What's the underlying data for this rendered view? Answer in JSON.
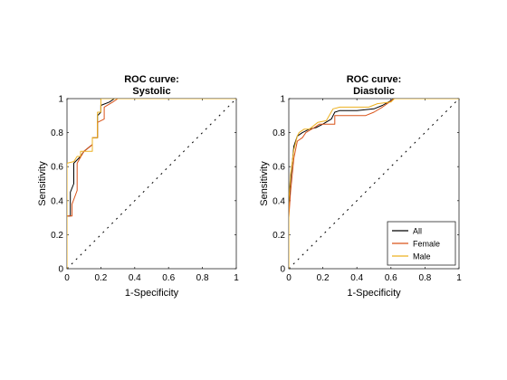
{
  "chart_data": [
    {
      "type": "line",
      "title": [
        "ROC curve:",
        "Systolic"
      ],
      "xlabel": "1-Specificity",
      "ylabel": "Sensitivity",
      "xlim": [
        0,
        1
      ],
      "ylim": [
        0,
        1
      ],
      "xticks": [
        "0",
        "0.2",
        "0.4",
        "0.6",
        "0.8",
        "1"
      ],
      "yticks": [
        "0",
        "0.2",
        "0.4",
        "0.6",
        "0.8",
        "1"
      ],
      "grid": false,
      "legend": null,
      "reference_line": {
        "style": "dotted",
        "from": [
          0,
          0
        ],
        "to": [
          1,
          1
        ]
      },
      "series": [
        {
          "color": "#000000",
          "x": [
            0,
            0,
            0.02,
            0.02,
            0.04,
            0.04,
            0.08,
            0.1,
            0.15,
            0.15,
            0.18,
            0.18,
            0.2,
            0.2,
            0.25,
            0.28,
            1
          ],
          "y": [
            0,
            0.31,
            0.31,
            0.45,
            0.5,
            0.62,
            0.66,
            0.69,
            0.73,
            0.77,
            0.77,
            0.9,
            0.92,
            0.96,
            0.98,
            1,
            1
          ]
        },
        {
          "color": "#d95319",
          "x": [
            0,
            0,
            0.03,
            0.03,
            0.06,
            0.06,
            0.1,
            0.15,
            0.15,
            0.18,
            0.18,
            0.22,
            0.22,
            0.27,
            0.3,
            1
          ],
          "y": [
            0,
            0.31,
            0.31,
            0.38,
            0.46,
            0.62,
            0.69,
            0.73,
            0.77,
            0.77,
            0.86,
            0.88,
            0.95,
            0.98,
            1,
            1
          ]
        },
        {
          "color": "#edb120",
          "x": [
            0,
            0,
            0.04,
            0.06,
            0.08,
            0.08,
            0.15,
            0.15,
            0.18,
            0.18,
            0.2,
            0.2,
            1
          ],
          "y": [
            0,
            0.62,
            0.63,
            0.66,
            0.66,
            0.69,
            0.69,
            0.77,
            0.77,
            0.92,
            0.92,
            1,
            1
          ]
        }
      ]
    },
    {
      "type": "line",
      "title": [
        "ROC curve:",
        "Diastolic"
      ],
      "xlabel": "1-Specificity",
      "ylabel": "Sensitivity",
      "xlim": [
        0,
        1
      ],
      "ylim": [
        0,
        1
      ],
      "xticks": [
        "0",
        "0.2",
        "0.4",
        "0.6",
        "0.8",
        "1"
      ],
      "yticks": [
        "0",
        "0.2",
        "0.4",
        "0.6",
        "0.8",
        "1"
      ],
      "grid": false,
      "legend": "bottom-right",
      "reference_line": {
        "style": "dotted",
        "from": [
          0,
          0
        ],
        "to": [
          1,
          1
        ]
      },
      "series": [
        {
          "name": "All",
          "color": "#000000",
          "x": [
            0,
            0,
            0.01,
            0.02,
            0.03,
            0.05,
            0.08,
            0.12,
            0.16,
            0.2,
            0.25,
            0.27,
            0.3,
            0.4,
            0.5,
            0.55,
            0.62,
            1
          ],
          "y": [
            0,
            0.35,
            0.52,
            0.62,
            0.72,
            0.78,
            0.8,
            0.82,
            0.83,
            0.85,
            0.88,
            0.92,
            0.93,
            0.93,
            0.94,
            0.96,
            1,
            1
          ]
        },
        {
          "name": "Female",
          "color": "#d95319",
          "x": [
            0,
            0,
            0.01,
            0.03,
            0.05,
            0.08,
            0.1,
            0.15,
            0.18,
            0.22,
            0.27,
            0.27,
            0.45,
            0.5,
            0.55,
            0.62,
            1
          ],
          "y": [
            0,
            0.3,
            0.45,
            0.65,
            0.75,
            0.77,
            0.8,
            0.83,
            0.85,
            0.85,
            0.85,
            0.9,
            0.9,
            0.92,
            0.95,
            1,
            1
          ]
        },
        {
          "name": "Male",
          "color": "#edb120",
          "x": [
            0,
            0,
            0.01,
            0.03,
            0.05,
            0.06,
            0.09,
            0.12,
            0.17,
            0.22,
            0.26,
            0.3,
            0.47,
            0.52,
            0.6,
            0.62,
            1
          ],
          "y": [
            0,
            0.4,
            0.55,
            0.7,
            0.78,
            0.8,
            0.82,
            0.82,
            0.86,
            0.87,
            0.94,
            0.95,
            0.95,
            0.97,
            0.98,
            1,
            1
          ]
        }
      ]
    }
  ]
}
